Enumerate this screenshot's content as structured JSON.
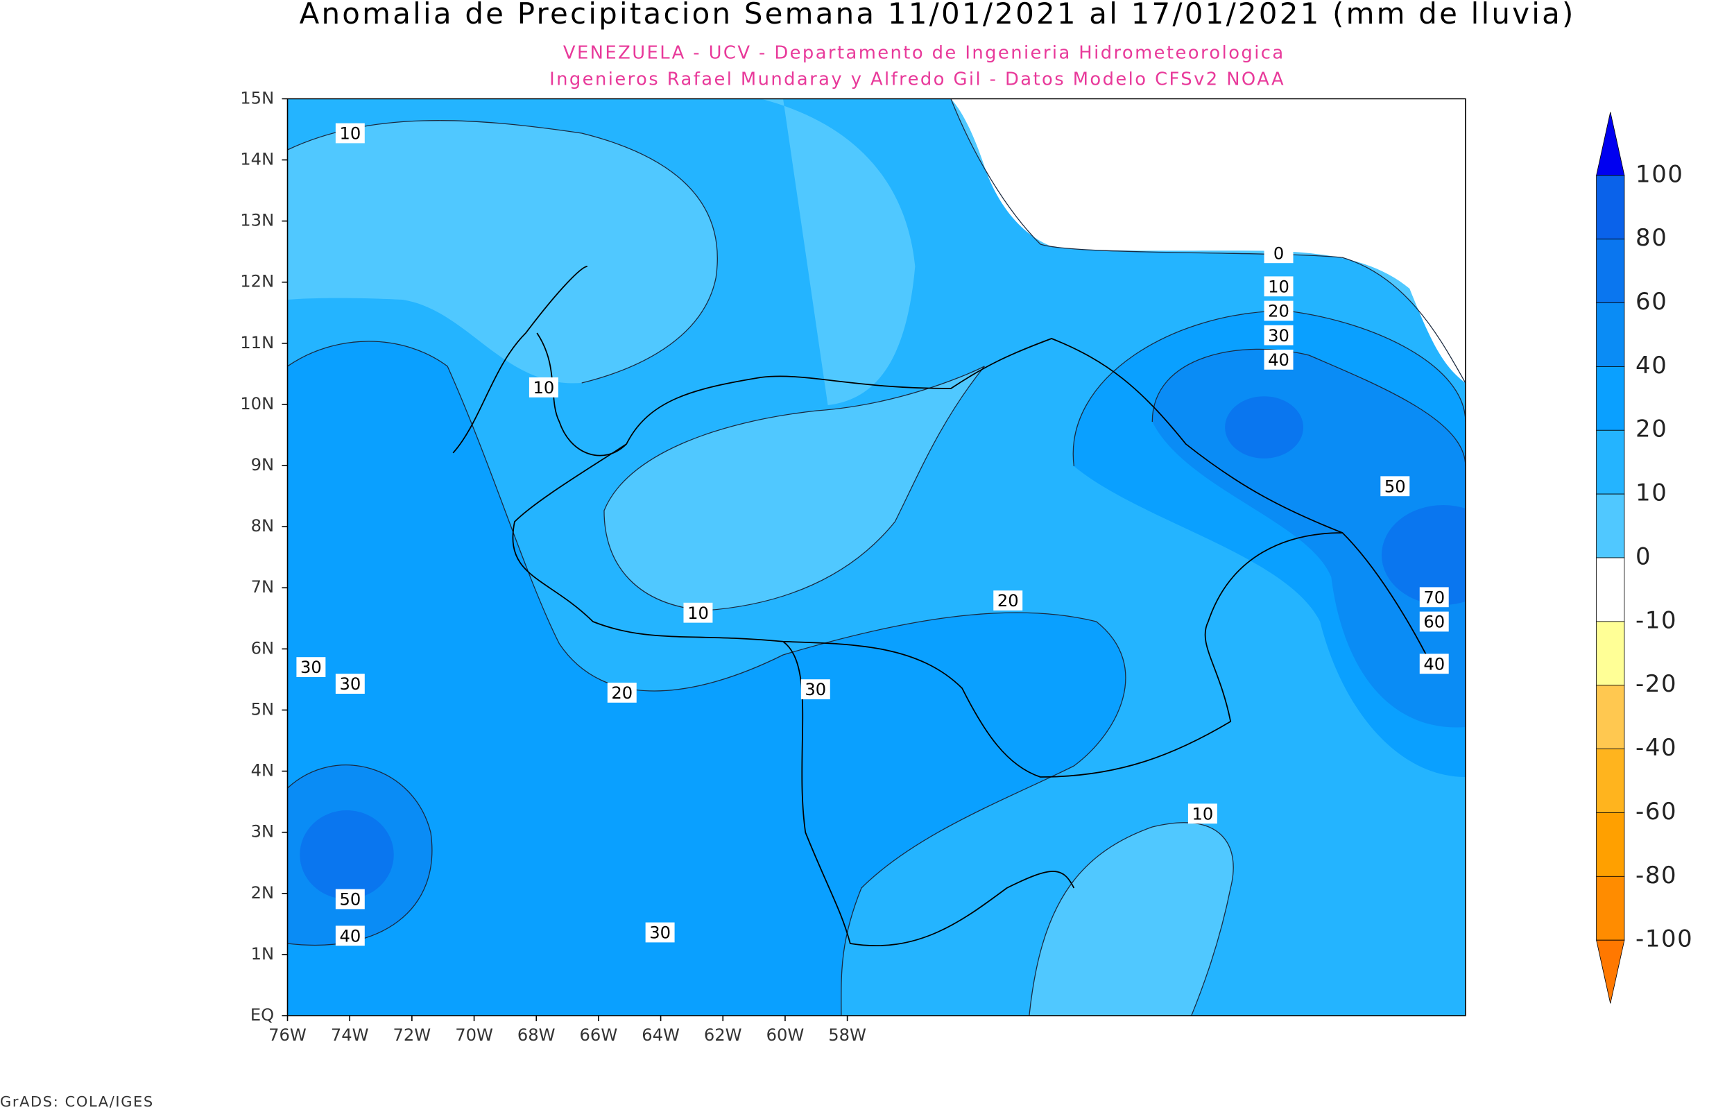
{
  "title": "Anomalia de Precipitacion Semana 11/01/2021 al 17/01/2021 (mm de lluvia)",
  "subtitle": [
    "VENEZUELA - UCV - Departamento de Ingenieria Hidrometeorologica",
    "Ingenieros Rafael Mundaray y Alfredo Gil - Datos Modelo CFSv2 NOAA"
  ],
  "lat_labels": [
    "15N",
    "14N",
    "13N",
    "12N",
    "11N",
    "10N",
    "9N",
    "8N",
    "7N",
    "6N",
    "5N",
    "4N",
    "3N",
    "2N",
    "1N",
    "EQ"
  ],
  "lon_labels": [
    "76W",
    "74W",
    "72W",
    "70W",
    "68W",
    "66W",
    "64W",
    "62W",
    "60W",
    "58W"
  ],
  "contour_labels": [
    10,
    0,
    10,
    20,
    30,
    40,
    10,
    50,
    70,
    60,
    20,
    10,
    30,
    30,
    40,
    20,
    30,
    10,
    50,
    40,
    30
  ],
  "colorbar": {
    "labels": [
      100,
      80,
      60,
      40,
      20,
      10,
      0,
      -10,
      -20,
      -40,
      -60,
      -80,
      -100
    ],
    "colors": [
      "#0000f0",
      "#0a62ea",
      "#0a76ef",
      "#0a8cf5",
      "#0aa0ff",
      "#24b4ff",
      "#50c8ff",
      "#ffffff",
      "#ffff96",
      "#ffc850",
      "#ffb41e",
      "#ffa000",
      "#ff8c00",
      "#ff7800"
    ]
  },
  "footer": "GrADS: COLA/IGES"
}
